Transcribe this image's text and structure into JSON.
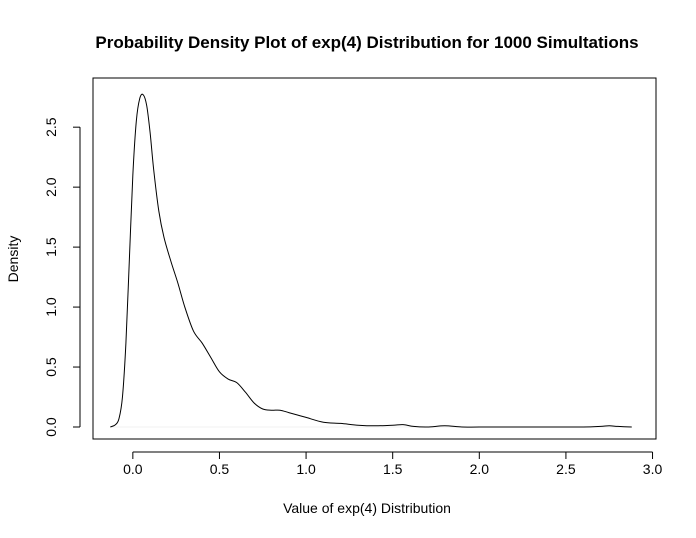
{
  "chart_data": {
    "type": "line",
    "title": "Probability Density Plot of exp(4) Distribution for 1000 Simultations",
    "xlabel": "Value of exp(4) Distribution",
    "ylabel": "Density",
    "xlim": [
      -0.23,
      3.02
    ],
    "ylim": [
      -0.1,
      2.91
    ],
    "xticks": [
      0.0,
      0.5,
      1.0,
      1.5,
      2.0,
      2.5,
      3.0
    ],
    "xtick_labels": [
      "0.0",
      "0.5",
      "1.0",
      "1.5",
      "2.0",
      "2.5",
      "3.0"
    ],
    "yticks": [
      0.0,
      0.5,
      1.0,
      1.5,
      2.0,
      2.5
    ],
    "ytick_labels": [
      "0.0",
      "0.5",
      "1.0",
      "1.5",
      "2.0",
      "2.5"
    ],
    "grid": false,
    "series": [
      {
        "x": [
          -0.13,
          -0.1,
          -0.08,
          -0.06,
          -0.04,
          -0.02,
          0.0,
          0.02,
          0.04,
          0.06,
          0.08,
          0.1,
          0.12,
          0.15,
          0.18,
          0.22,
          0.26,
          0.3,
          0.35,
          0.4,
          0.45,
          0.5,
          0.55,
          0.6,
          0.65,
          0.7,
          0.75,
          0.8,
          0.85,
          0.9,
          0.95,
          1.0,
          1.1,
          1.2,
          1.3,
          1.4,
          1.5,
          1.56,
          1.62,
          1.7,
          1.8,
          1.9,
          2.0,
          2.2,
          2.4,
          2.6,
          2.7,
          2.75,
          2.8,
          2.88
        ],
        "y": [
          0.0,
          0.02,
          0.07,
          0.25,
          0.7,
          1.4,
          2.1,
          2.55,
          2.74,
          2.77,
          2.68,
          2.45,
          2.15,
          1.8,
          1.58,
          1.38,
          1.2,
          1.0,
          0.8,
          0.7,
          0.58,
          0.46,
          0.4,
          0.37,
          0.29,
          0.2,
          0.15,
          0.14,
          0.14,
          0.12,
          0.1,
          0.08,
          0.04,
          0.03,
          0.015,
          0.01,
          0.015,
          0.02,
          0.005,
          0.0,
          0.01,
          0.0,
          0.0,
          0.0,
          0.0,
          0.0,
          0.005,
          0.01,
          0.005,
          0.0
        ],
        "color": "#000000"
      }
    ]
  }
}
